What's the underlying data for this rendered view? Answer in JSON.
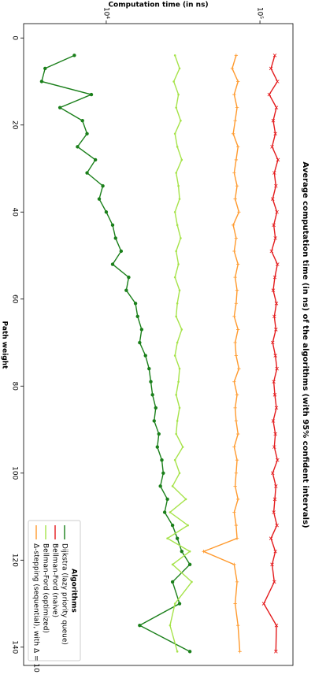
{
  "chart_data": {
    "type": "line",
    "title": "Average computation time (in ns) of the algorithms (with 95% confident intervals)",
    "x_label": "Path weight",
    "y_label": "Computation time (in ns)",
    "legend_title": "Algorithms",
    "legend": "lower right",
    "log_y": true,
    "xlim": [
      -3.3,
      144.2
    ],
    "ylim": [
      2900,
      164000
    ],
    "xticks": [
      0,
      20,
      40,
      60,
      80,
      100,
      120,
      140
    ],
    "yticks": [
      {
        "value": 10000,
        "label": "10⁴"
      },
      {
        "value": 100000,
        "label": "10⁵"
      }
    ],
    "x": [
      4,
      7,
      10,
      13,
      16,
      19,
      22,
      25,
      28,
      31,
      34,
      37,
      40,
      43,
      46,
      49,
      52,
      55,
      58,
      61,
      64,
      67,
      70,
      73,
      76,
      79,
      82,
      85,
      88,
      91,
      94,
      97,
      100,
      103,
      106,
      109,
      112,
      115,
      118,
      121,
      125,
      130,
      135,
      141
    ],
    "series": [
      {
        "name": "Dijkstra (lazy priority queue)",
        "color": "#1a7f1a",
        "marker": "o",
        "values": [
          6200,
          4000,
          3800,
          8000,
          5000,
          7000,
          7500,
          6500,
          8500,
          7500,
          9500,
          9000,
          10000,
          11000,
          11500,
          12500,
          11000,
          14000,
          13500,
          15500,
          16000,
          17000,
          16500,
          18000,
          19000,
          19500,
          20000,
          21000,
          20500,
          22000,
          21500,
          23000,
          23500,
          22500,
          25000,
          24000,
          27000,
          29000,
          31000,
          35000,
          27000,
          30000,
          16500,
          35000
        ]
      },
      {
        "name": "Bellman-Ford (naive)",
        "color": "#e31a1c",
        "marker": "x",
        "values": [
          125000,
          118000,
          130000,
          115000,
          128000,
          122000,
          126000,
          120000,
          131000,
          124000,
          127000,
          121000,
          129000,
          123000,
          126000,
          119000,
          130000,
          125000,
          122000,
          128000,
          124000,
          127000,
          121000,
          126000,
          129000,
          123000,
          125000,
          128000,
          122000,
          126000,
          124000,
          130000,
          121000,
          127000,
          125000,
          123000,
          129000,
          118000,
          126000,
          120000,
          124000,
          106000,
          128000,
          127000
        ]
      },
      {
        "name": "Bellman-Ford (optimized)",
        "color": "#a6e34a",
        "marker": ".",
        "values": [
          28000,
          30000,
          27500,
          29500,
          28500,
          30500,
          28000,
          29000,
          31000,
          28500,
          29500,
          30000,
          28000,
          29000,
          30500,
          28500,
          29500,
          28000,
          30000,
          29000,
          28500,
          31000,
          29000,
          28000,
          30000,
          29500,
          28500,
          30000,
          29000,
          28500,
          31500,
          28000,
          30000,
          27000,
          33000,
          26000,
          34000,
          25000,
          35000,
          27000,
          36000,
          28000,
          26000,
          29000
        ]
      },
      {
        "name": "Δ-stepping (sequential), with Δ = 10",
        "color": "#ff9a2e",
        "marker": "+",
        "values": [
          70000,
          66000,
          72000,
          68000,
          71000,
          69000,
          67000,
          72000,
          70000,
          68000,
          71000,
          69000,
          73000,
          67000,
          70000,
          68000,
          72000,
          69000,
          71000,
          70000,
          68000,
          72000,
          69000,
          70000,
          73000,
          68000,
          71000,
          69000,
          70000,
          72000,
          68000,
          71000,
          70000,
          69000,
          72000,
          68000,
          70000,
          71000,
          43000,
          68000,
          71000,
          69000,
          72000,
          74000
        ]
      }
    ]
  }
}
